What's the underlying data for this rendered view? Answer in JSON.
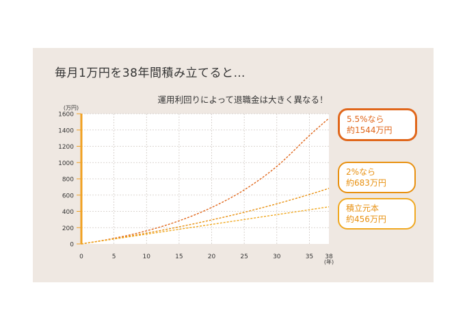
{
  "page_title": "毎月1万円を38年間積み立てると…",
  "colors": {
    "panel_bg": "#efe8e2",
    "plot_bg": "#ffffff",
    "axis": "#f0a020",
    "grid": "#cfc8c2",
    "line_5_5": "#e0661a",
    "line_2": "#e8900f",
    "line_principal": "#f0a820",
    "text": "#333333"
  },
  "callouts": [
    {
      "line1": "5.5%なら",
      "line2": "約1544万円",
      "color": "#e0661a"
    },
    {
      "line1": "2%なら",
      "line2": "約683万円",
      "color": "#e8900f"
    },
    {
      "line1": "積立元本",
      "line2": "約456万円",
      "color": "#f0a820"
    }
  ],
  "chart_data": {
    "type": "line",
    "title": "運用利回りによって退職金は大きく異なる！",
    "ylabel": "(万円)",
    "xlabel": "(年)",
    "x_ticks": [
      0,
      5,
      10,
      15,
      20,
      25,
      30,
      35,
      38
    ],
    "y_ticks": [
      0,
      200,
      400,
      600,
      800,
      1000,
      1200,
      1400,
      1600
    ],
    "xlim": [
      0,
      38
    ],
    "ylim": [
      0,
      1600
    ],
    "grid": true,
    "series": [
      {
        "name": "5.5%なら",
        "x": [
          0,
          5,
          10,
          15,
          20,
          25,
          30,
          35,
          38
        ],
        "values": [
          0,
          69,
          161,
          284,
          448,
          664,
          953,
          1332,
          1544
        ],
        "color": "#e0661a"
      },
      {
        "name": "2%なら",
        "x": [
          0,
          5,
          10,
          15,
          20,
          25,
          30,
          35,
          38
        ],
        "values": [
          0,
          63,
          133,
          210,
          295,
          389,
          493,
          608,
          683
        ],
        "color": "#e8900f"
      },
      {
        "name": "積立元本",
        "x": [
          0,
          5,
          10,
          15,
          20,
          25,
          30,
          35,
          38
        ],
        "values": [
          0,
          60,
          120,
          180,
          240,
          300,
          360,
          420,
          456
        ],
        "color": "#f0a820"
      }
    ]
  }
}
